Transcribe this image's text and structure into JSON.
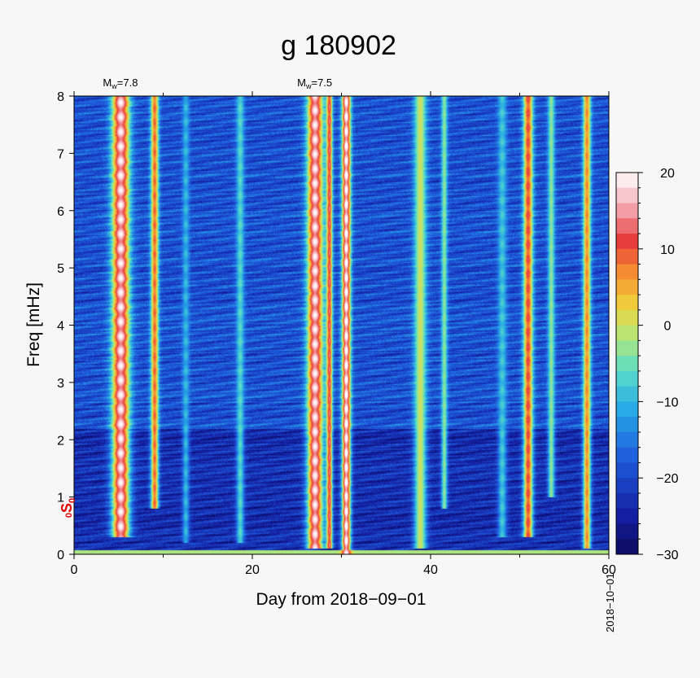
{
  "chart_data": {
    "type": "heatmap",
    "title": "g 180902",
    "xlabel": "Day from 2018−09−01",
    "ylabel": "Freq [mHz]",
    "xlim": [
      0,
      60
    ],
    "ylim": [
      0,
      8
    ],
    "x_ticks": [
      "0",
      "20",
      "40",
      "60"
    ],
    "x_tick_values": [
      0,
      20,
      40,
      60
    ],
    "y_ticks": [
      "0",
      "1",
      "2",
      "3",
      "4",
      "5",
      "6",
      "7",
      "8"
    ],
    "y_tick_values": [
      0,
      1,
      2,
      3,
      4,
      5,
      6,
      7,
      8
    ],
    "colorbar": {
      "range": [
        -30,
        20
      ],
      "ticks": [
        "20",
        "10",
        "0",
        "−10",
        "−20",
        "−30"
      ],
      "tick_values": [
        20,
        10,
        0,
        -10,
        -20,
        -30
      ]
    },
    "events": [
      {
        "day": 5.2,
        "label_base": "M",
        "label_sub": "w",
        "label_rest": "=7.8"
      },
      {
        "day": 27.0,
        "label_base": "M",
        "label_sub": "w",
        "label_rest": "=7.5"
      }
    ],
    "end_date_label": "2018−10−01",
    "mode_label": {
      "pre": "0",
      "main": "S",
      "sub": "0",
      "freq": 0.81
    },
    "bands": [
      {
        "day": 5.2,
        "peak": 20,
        "width": 1.0,
        "fmin": 0.3
      },
      {
        "day": 9.0,
        "peak": 10,
        "width": 0.45,
        "fmin": 0.8
      },
      {
        "day": 12.5,
        "peak": -12,
        "width": 0.4,
        "fmin": 0.2
      },
      {
        "day": 18.6,
        "peak": -8,
        "width": 0.45,
        "fmin": 0.2
      },
      {
        "day": 27.0,
        "peak": 20,
        "width": 0.9,
        "fmin": 0.1
      },
      {
        "day": 28.6,
        "peak": 14,
        "width": 0.35,
        "fmin": 0.1
      },
      {
        "day": 30.5,
        "peak": 22,
        "width": 0.5,
        "fmin": 0.0
      },
      {
        "day": 38.8,
        "peak": 0,
        "width": 0.7,
        "fmin": 0.1
      },
      {
        "day": 41.5,
        "peak": -4,
        "width": 0.35,
        "fmin": 0.8
      },
      {
        "day": 48.0,
        "peak": -10,
        "width": 0.5,
        "fmin": 0.3
      },
      {
        "day": 50.9,
        "peak": 12,
        "width": 0.55,
        "fmin": 0.3
      },
      {
        "day": 53.5,
        "peak": -4,
        "width": 0.4,
        "fmin": 1.0
      },
      {
        "day": 57.5,
        "peak": 8,
        "width": 0.45,
        "fmin": 0.1
      }
    ]
  }
}
